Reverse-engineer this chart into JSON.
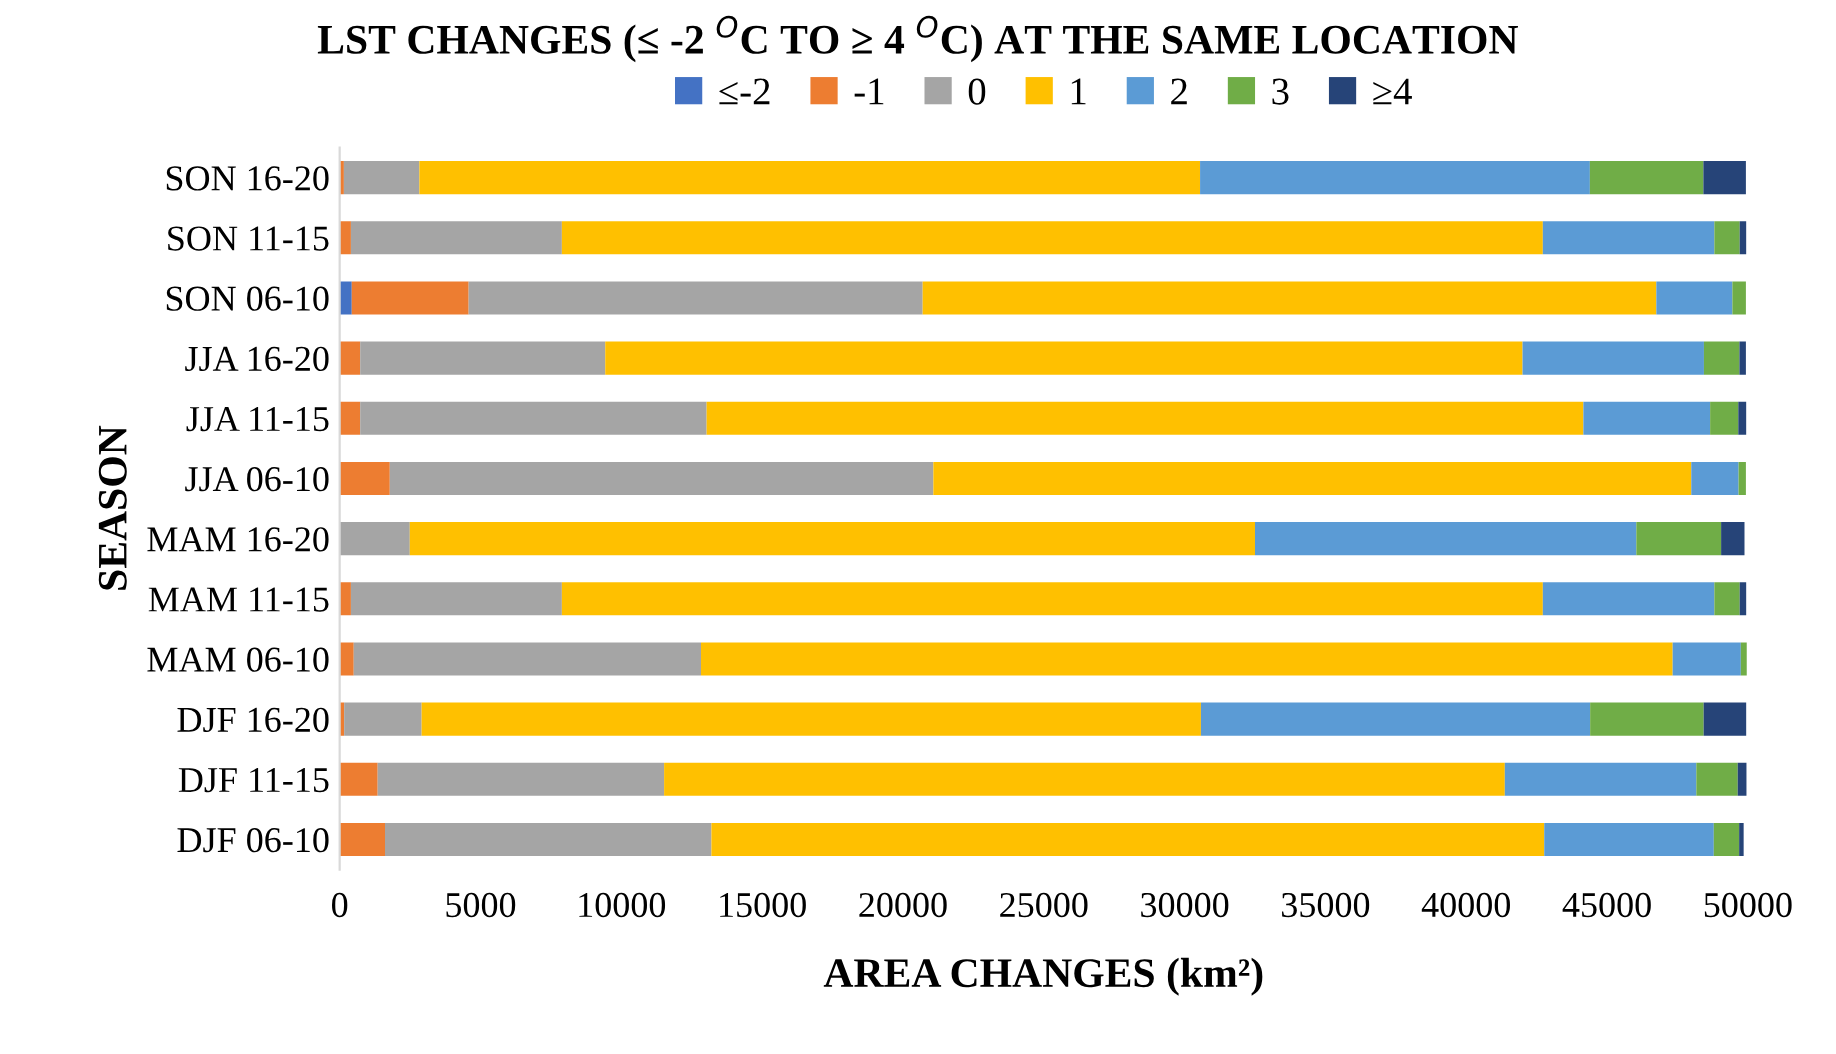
{
  "chart_data": {
    "type": "bar",
    "orientation": "horizontal",
    "stacked": true,
    "title": "LST CHANGES (≤ -2 $^{O}$C TO ≥ 4 $^{O}$C) AT THE SAME LOCATION",
    "xlabel": "AREA CHANGES (km²)",
    "ylabel": "SEASON",
    "categories": [
      "SON 16-20",
      "SON 11-15",
      "SON 06-10",
      "JJA 16-20",
      "JJA 11-15",
      "JJA 06-10",
      "MAM 16-20",
      "MAM 11-15",
      "MAM 06-10",
      "DJF 16-20",
      "DJF 11-15",
      "DJF 06-10"
    ],
    "series": [
      {
        "name": "≤-2",
        "color": "#4472c4",
        "values": [
          0,
          0,
          430,
          0,
          0,
          0,
          0,
          0,
          0,
          0,
          0,
          null
        ]
      },
      {
        "name": "-1",
        "color": "#ed7d31",
        "values": [
          150,
          400,
          4150,
          730,
          730,
          1780,
          null,
          400,
          500,
          160,
          1350,
          1610
        ]
      },
      {
        "name": "0",
        "color": "#a5a5a5",
        "values": [
          2680,
          7490,
          16120,
          8700,
          12300,
          19300,
          2490,
          7490,
          12330,
          2750,
          10170,
          11590
        ]
      },
      {
        "name": "1",
        "color": "#ffc000",
        "values": [
          27720,
          34830,
          26050,
          32570,
          31130,
          26910,
          30010,
          34830,
          34500,
          27670,
          29850,
          29570
        ]
      },
      {
        "name": "2",
        "color": "#5b9bd5",
        "values": [
          13840,
          6090,
          2700,
          6440,
          4500,
          1680,
          13540,
          6090,
          2420,
          13820,
          6800,
          6020
        ]
      },
      {
        "name": "3",
        "color": "#70ad47",
        "values": [
          4030,
          900,
          480,
          1260,
          1000,
          260,
          3010,
          900,
          210,
          4030,
          1470,
          900
        ]
      },
      {
        "name": "≥4",
        "color": "#264478",
        "values": [
          1510,
          230,
          0,
          230,
          280,
          0,
          830,
          230,
          0,
          1510,
          310,
          160
        ]
      }
    ],
    "xlim": [
      0,
      50000
    ],
    "xticks": [
      0,
      5000,
      10000,
      15000,
      20000,
      25000,
      30000,
      35000,
      40000,
      45000,
      50000
    ],
    "grid": false,
    "legend": "top"
  }
}
